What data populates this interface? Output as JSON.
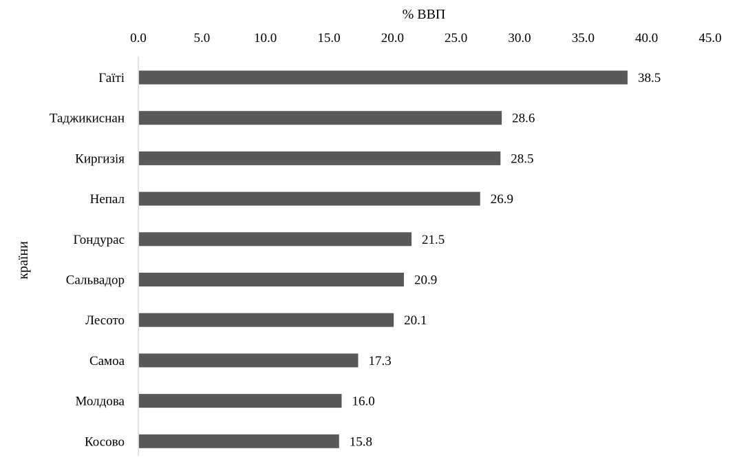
{
  "chart_data": {
    "type": "bar",
    "orientation": "horizontal",
    "xlabel": "% ВВП",
    "ylabel": "країни",
    "xlim": [
      0,
      45
    ],
    "x_ticks": [
      "0.0",
      "5.0",
      "10.0",
      "15.0",
      "20.0",
      "25.0",
      "30.0",
      "35.0",
      "40.0",
      "45.0"
    ],
    "x_axis_position": "top",
    "grid": false,
    "bar_color": "#595959",
    "categories": [
      "Гаїті",
      "Таджикиснан",
      "Киргизія",
      "Непал",
      "Гондурас",
      "Сальвадор",
      "Лесото",
      "Самоа",
      "Молдова",
      "Косово"
    ],
    "values": [
      38.5,
      28.6,
      28.5,
      26.9,
      21.5,
      20.9,
      20.1,
      17.3,
      16.0,
      15.8
    ],
    "data_labels": [
      "38.5",
      "28.6",
      "28.5",
      "26.9",
      "21.5",
      "20.9",
      "20.1",
      "17.3",
      "16.0",
      "15.8"
    ]
  }
}
